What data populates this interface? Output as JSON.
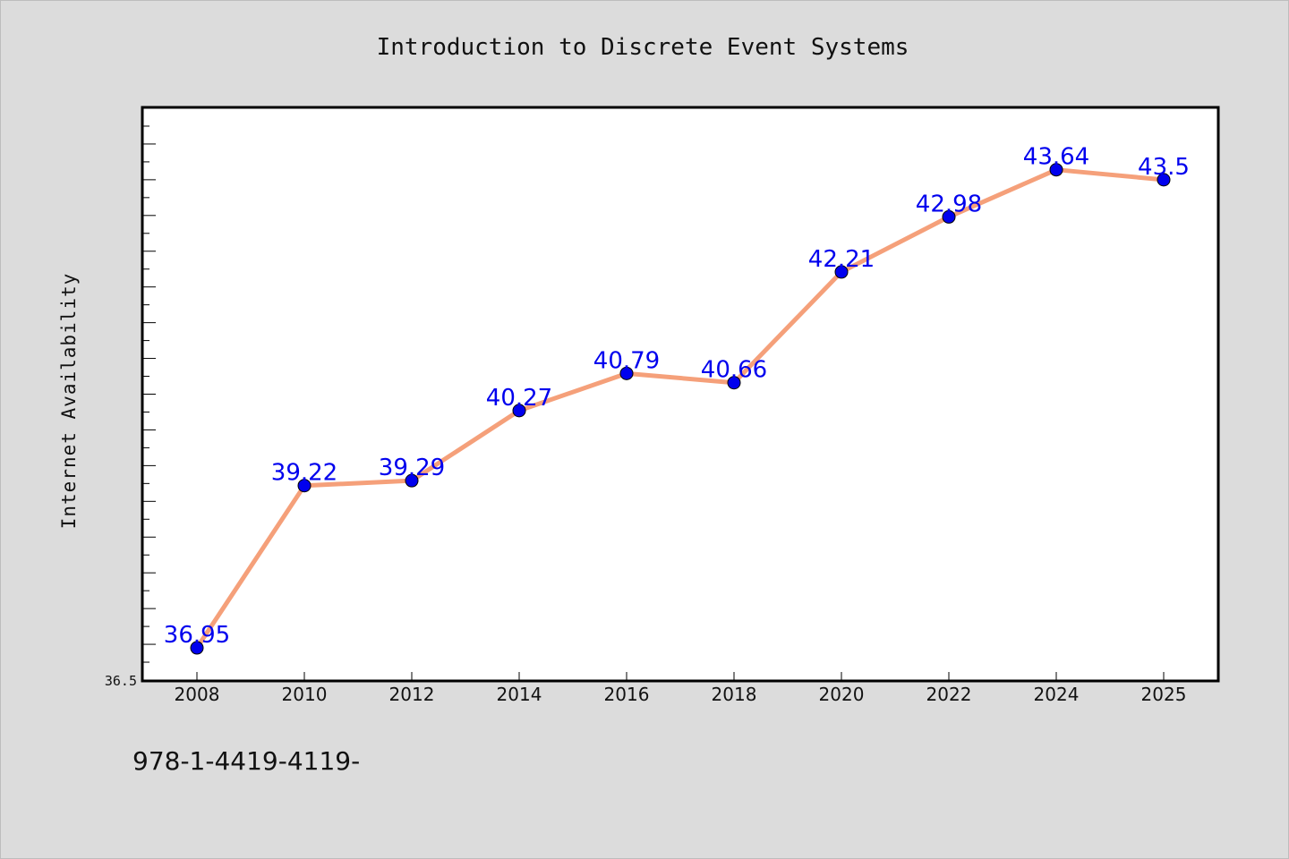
{
  "chart_data": {
    "type": "line",
    "title": "Introduction to Discrete Event Systems",
    "xlabel": "",
    "ylabel": "Internet Availability",
    "categories": [
      "2008",
      "2010",
      "2012",
      "2014",
      "2016",
      "2018",
      "2020",
      "2022",
      "2024",
      "2025"
    ],
    "series": [
      {
        "values": [
          36.95,
          39.22,
          39.29,
          40.27,
          40.79,
          40.66,
          42.21,
          42.98,
          43.64,
          43.5
        ],
        "labels": [
          "36.95",
          "39.22",
          "39.29",
          "40.27",
          "40.79",
          "40.66",
          "42.21",
          "42.98",
          "43.64",
          "43.5"
        ],
        "line_color": "#f5a07a",
        "marker_color": "#0000ee"
      }
    ],
    "ylim": [
      36.5,
      44.5
    ],
    "yticklabels": [
      "36.5"
    ],
    "grid": false
  },
  "footer": "978-1-4419-4119-"
}
